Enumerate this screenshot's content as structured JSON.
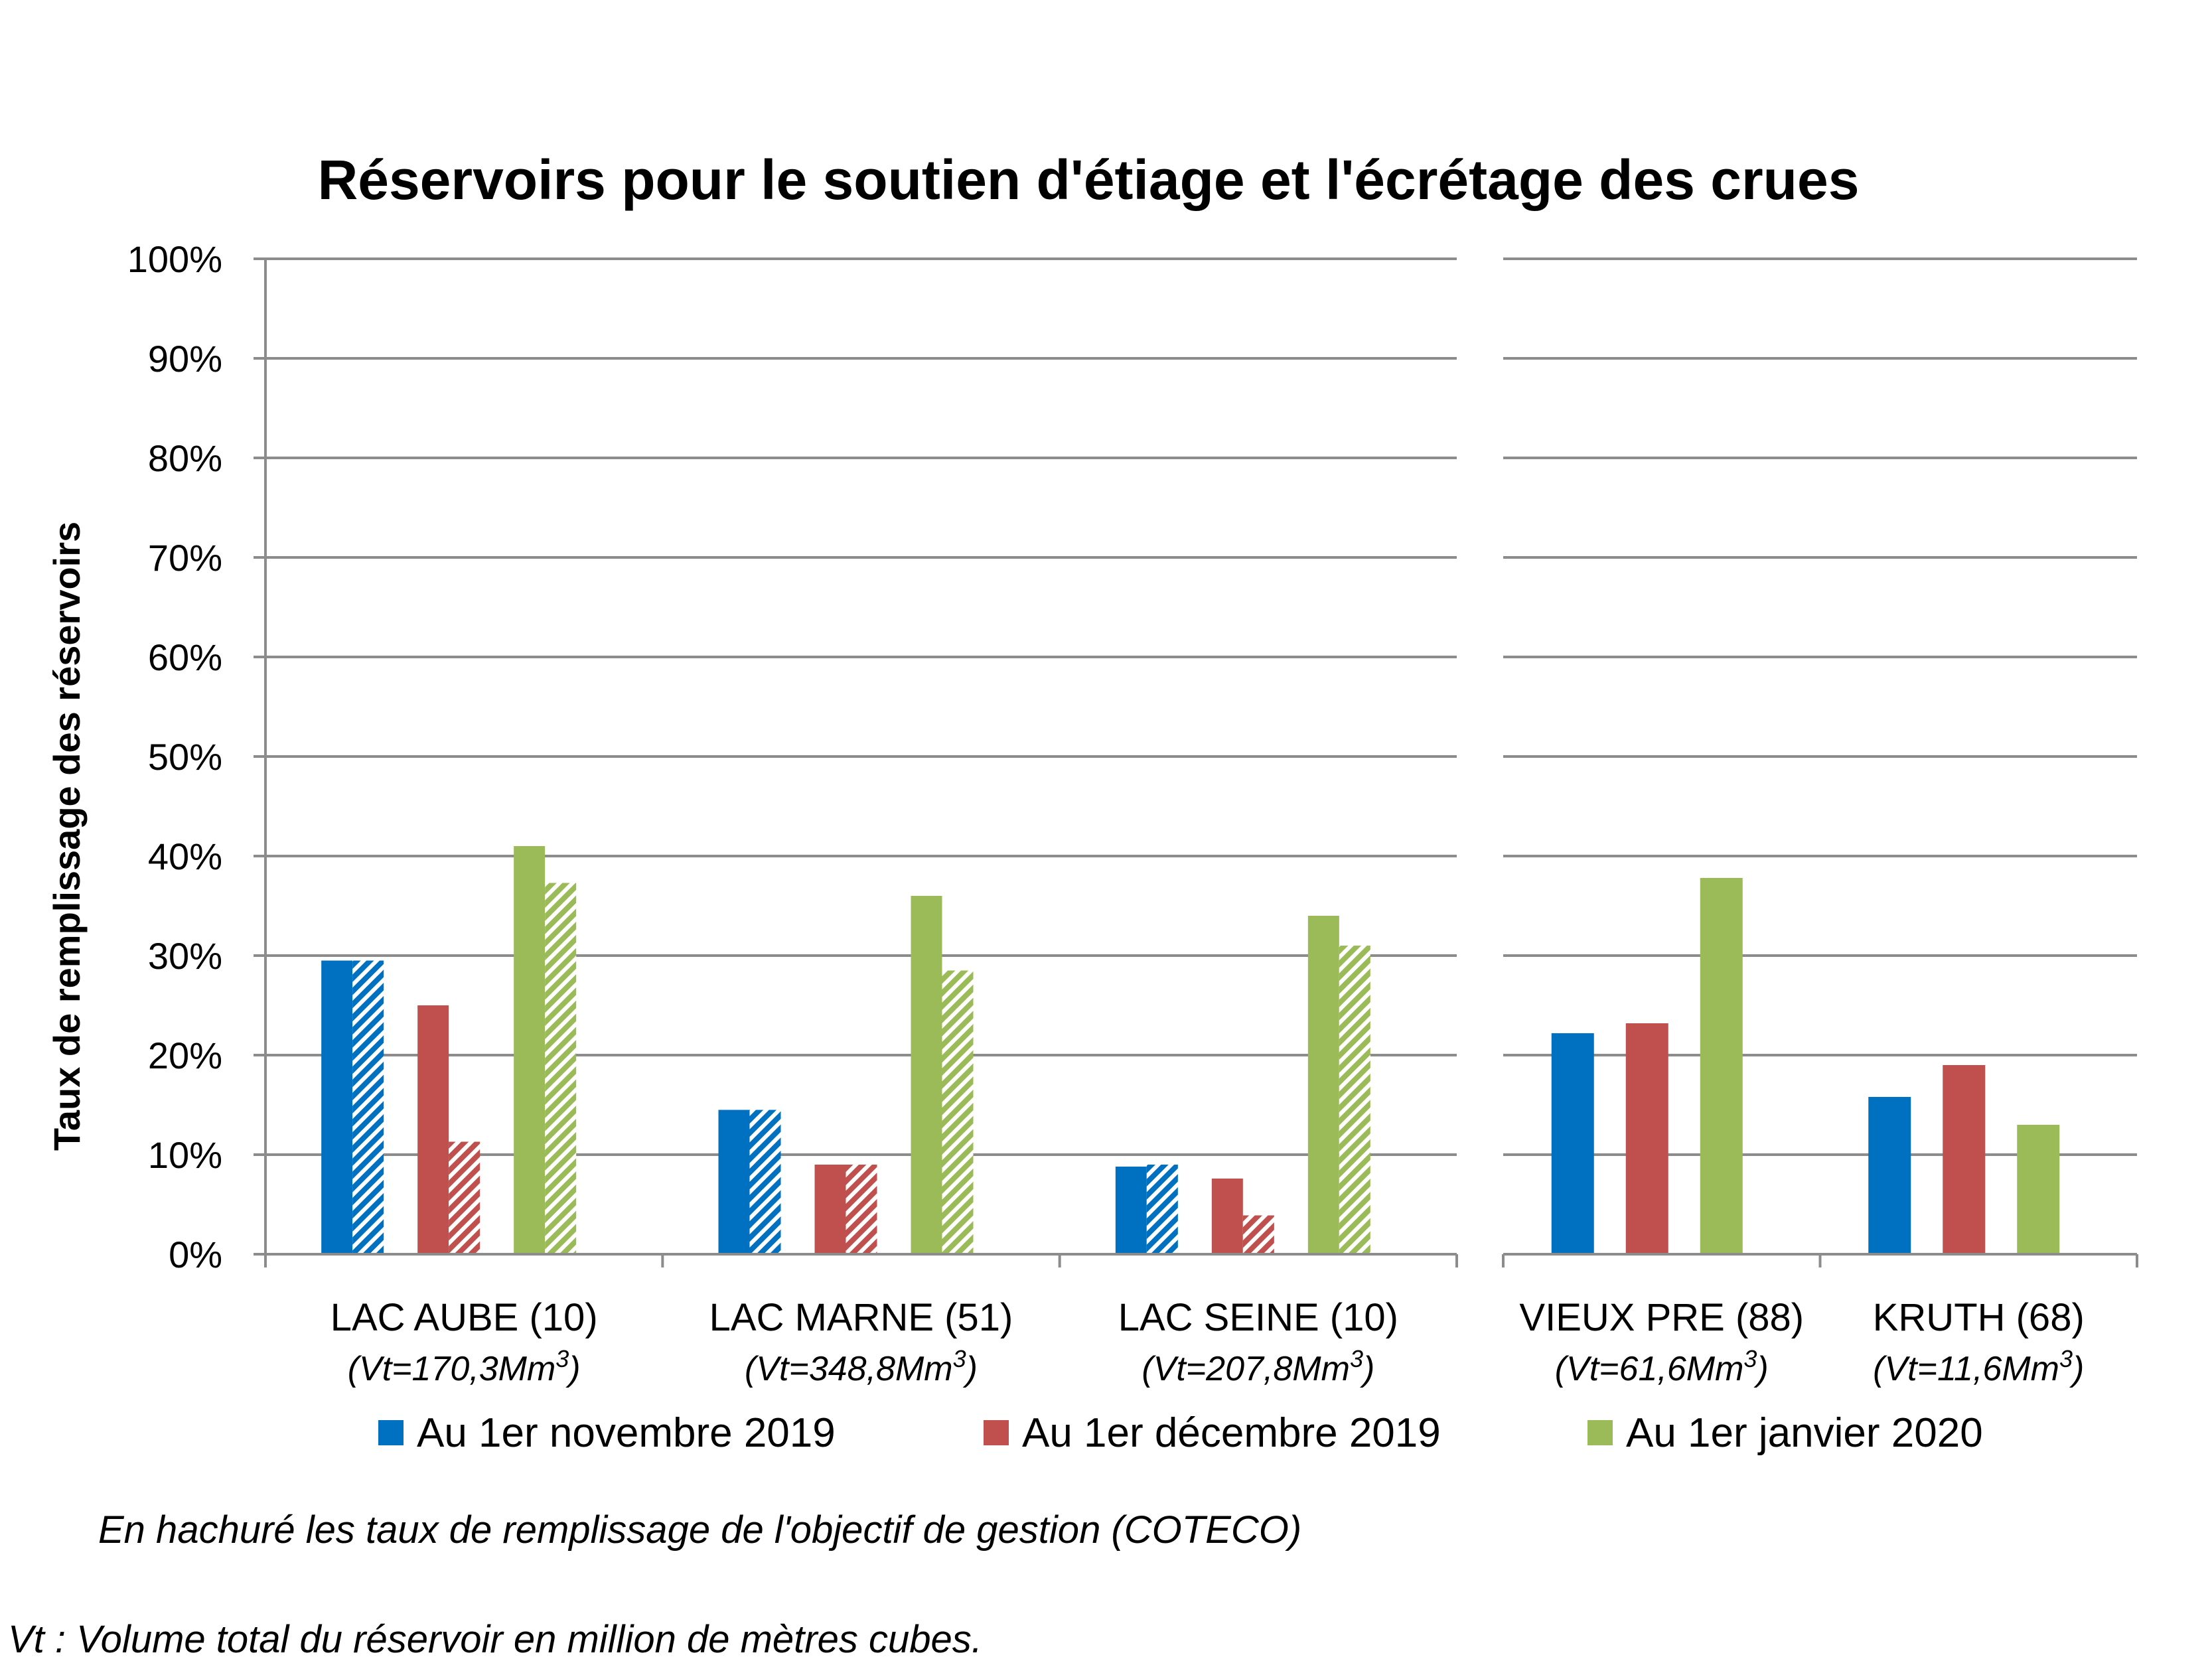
{
  "chart_data": [
    {
      "type": "bar",
      "title": "Réservoirs pour le soutien d'étiage et l'écrétage des crues",
      "ylabel": "Taux de remplissage des réservoirs",
      "ylim": [
        0,
        100
      ],
      "y_ticks": [
        "0%",
        "10%",
        "20%",
        "30%",
        "40%",
        "50%",
        "60%",
        "70%",
        "80%",
        "90%",
        "100%"
      ],
      "grid": true,
      "categories": [
        "LAC AUBE (10)",
        "LAC MARNE (51)",
        "LAC SEINE (10)"
      ],
      "category_subtitles": [
        {
          "prefix": "(Vt=170,3Mm",
          "sup": "3",
          "suffix": ")"
        },
        {
          "prefix": "(Vt=348,8Mm",
          "sup": "3",
          "suffix": ")"
        },
        {
          "prefix": "(Vt=207,8Mm",
          "sup": "3",
          "suffix": ")"
        }
      ],
      "series": [
        {
          "name": "Au 1er novembre 2019",
          "color": "#0070C0",
          "values": [
            29.5,
            14.5,
            8.8
          ],
          "objective": [
            29.5,
            14.5,
            9.0
          ]
        },
        {
          "name": "Au 1er décembre 2019",
          "color": "#C0504D",
          "values": [
            25.0,
            9.0,
            7.6
          ],
          "objective": [
            11.3,
            9.0,
            3.9
          ]
        },
        {
          "name": "Au 1er janvier 2020",
          "color": "#9BBB59",
          "values": [
            41.0,
            36.0,
            34.0
          ],
          "objective": [
            37.3,
            28.5,
            31.0
          ]
        }
      ]
    },
    {
      "type": "bar",
      "ylim": [
        0,
        100
      ],
      "grid": true,
      "categories": [
        "VIEUX PRE (88)",
        "KRUTH (68)"
      ],
      "category_subtitles": [
        {
          "prefix": "(Vt=61,6Mm",
          "sup": "3",
          "suffix": ")"
        },
        {
          "prefix": "(Vt=11,6Mm",
          "sup": "3",
          "suffix": ")"
        }
      ],
      "series": [
        {
          "name": "Au 1er novembre 2019",
          "color": "#0070C0",
          "values": [
            22.2,
            15.8
          ]
        },
        {
          "name": "Au 1er décembre 2019",
          "color": "#C0504D",
          "values": [
            23.2,
            19.0
          ]
        },
        {
          "name": "Au 1er janvier 2020",
          "color": "#9BBB59",
          "values": [
            37.8,
            13.0
          ]
        }
      ]
    }
  ],
  "legend": {
    "items": [
      {
        "label": "Au 1er novembre 2019",
        "color": "#0070C0"
      },
      {
        "label": "Au 1er décembre 2019",
        "color": "#C0504D"
      },
      {
        "label": "Au 1er janvier 2020",
        "color": "#9BBB59"
      }
    ]
  },
  "notes": {
    "hatch_note": "En hachuré les taux de remplissage de l'objectif de gestion (COTECO)",
    "vt_note": "Vt : Volume total du réservoir en million de mètres cubes."
  }
}
